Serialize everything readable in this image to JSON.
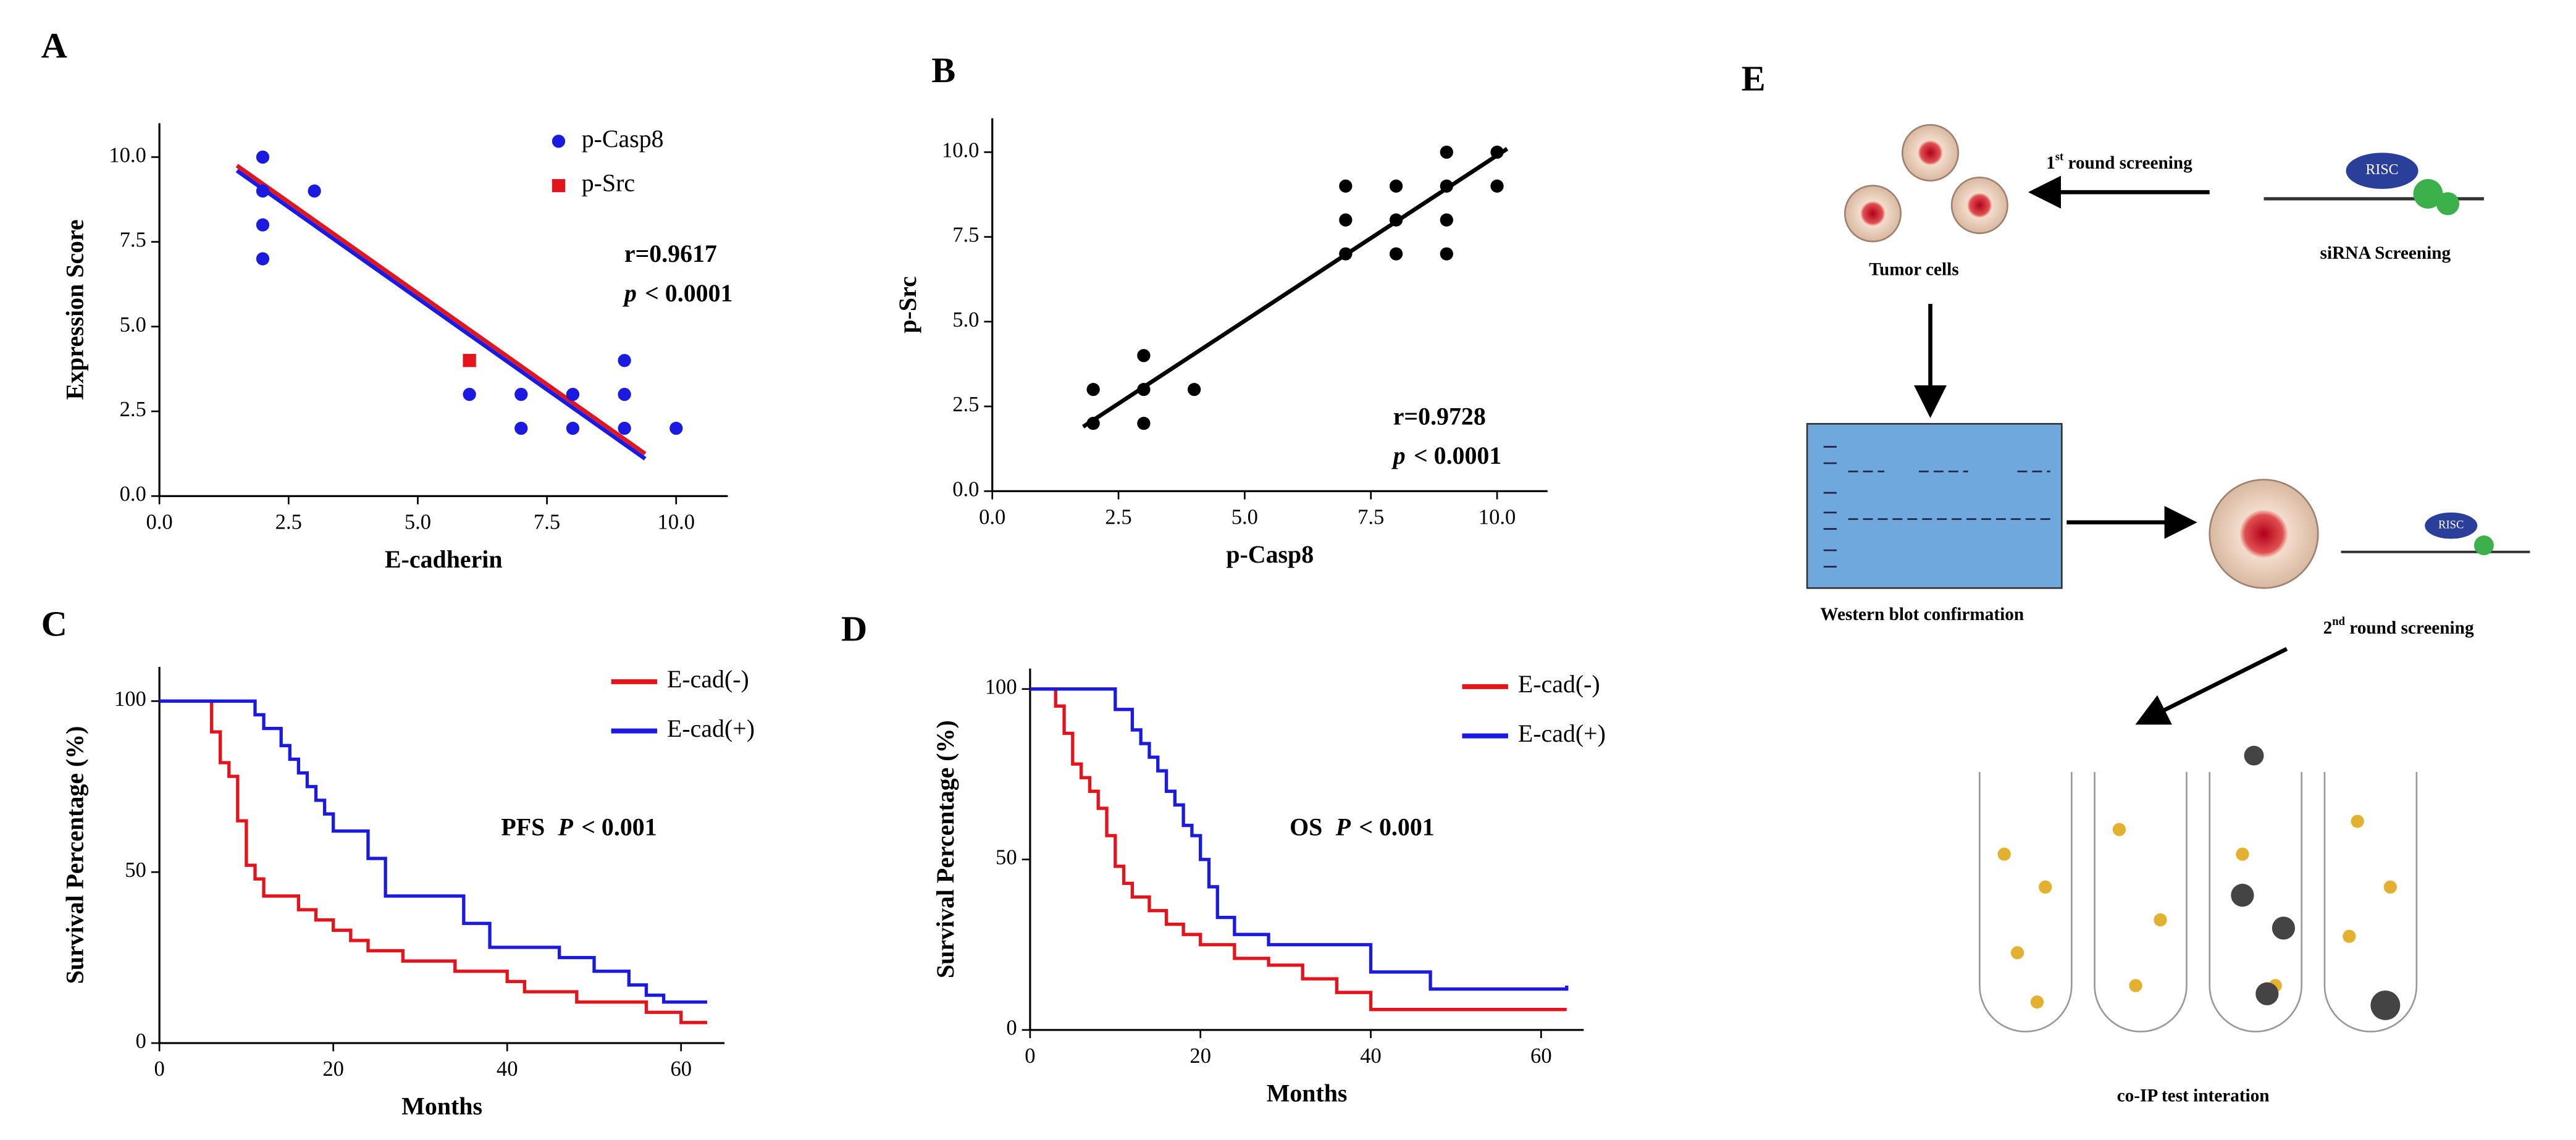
{
  "chart_data": [
    {
      "type": "scatter",
      "label": "A",
      "x_label": "E-cadherin",
      "y_label": "Expression Score",
      "xlim": [
        0,
        11
      ],
      "ylim": [
        0,
        11
      ],
      "xticks": [
        {
          "value": 0,
          "label": "0.0"
        },
        {
          "value": 2.5,
          "label": "2.5"
        },
        {
          "value": 5,
          "label": "5.0"
        },
        {
          "value": 7.5,
          "label": "7.5"
        },
        {
          "value": 10,
          "label": "10.0"
        }
      ],
      "yticks": [
        {
          "value": 0,
          "label": "0.0"
        },
        {
          "value": 2.5,
          "label": "2.5"
        },
        {
          "value": 5,
          "label": "5.0"
        },
        {
          "value": 7.5,
          "label": "7.5"
        },
        {
          "value": 10,
          "label": "10.0"
        }
      ],
      "series": [
        {
          "name": "p-Casp8",
          "color": "#1a1ae0",
          "marker": "circle",
          "x": [
            2,
            2,
            2,
            2,
            3,
            6,
            7,
            7,
            8,
            8,
            9,
            9,
            9,
            10
          ],
          "values": [
            10,
            9,
            8,
            7,
            9,
            3,
            3,
            2,
            3,
            2,
            4,
            3,
            2,
            2
          ]
        },
        {
          "name": "p-Src",
          "color": "#e3141c",
          "marker": "square",
          "x": [
            6
          ],
          "values": [
            4
          ]
        }
      ],
      "fit_lines": [
        {
          "color": "#e3141c",
          "x": [
            1.5,
            9.4
          ],
          "values": [
            9.75,
            1.25
          ]
        },
        {
          "color": "#1a1ae0",
          "x": [
            1.5,
            9.4
          ],
          "values": [
            9.6,
            1.1
          ]
        }
      ],
      "stat_r": "r=0.9617",
      "stat_p_symbol": "p",
      "stat_p_value": "< 0.0001"
    },
    {
      "type": "scatter",
      "label": "B",
      "x_label": "p-Casp8",
      "y_label": "p-Src",
      "xlim": [
        0,
        11
      ],
      "ylim": [
        0,
        11
      ],
      "xticks": [
        {
          "value": 0,
          "label": "0.0"
        },
        {
          "value": 2.5,
          "label": "2.5"
        },
        {
          "value": 5,
          "label": "5.0"
        },
        {
          "value": 7.5,
          "label": "7.5"
        },
        {
          "value": 10,
          "label": "10.0"
        }
      ],
      "yticks": [
        {
          "value": 0,
          "label": "0.0"
        },
        {
          "value": 2.5,
          "label": "2.5"
        },
        {
          "value": 5,
          "label": "5.0"
        },
        {
          "value": 7.5,
          "label": "7.5"
        },
        {
          "value": 10,
          "label": "10.0"
        }
      ],
      "series": [
        {
          "color": "#000000",
          "marker": "circle",
          "x": [
            2,
            2,
            3,
            3,
            3,
            4,
            7,
            7,
            7,
            8,
            8,
            8,
            9,
            9,
            9,
            9,
            10,
            10
          ],
          "values": [
            3,
            2,
            4,
            3,
            2,
            3,
            9,
            8,
            7,
            9,
            8,
            7,
            10,
            9,
            8,
            7,
            10,
            9
          ]
        }
      ],
      "fit_lines": [
        {
          "color": "#000000",
          "x": [
            1.8,
            10.2
          ],
          "values": [
            1.9,
            10.1
          ]
        }
      ],
      "stat_r": "r=0.9728",
      "stat_p_symbol": "p",
      "stat_p_value": "< 0.0001"
    },
    {
      "type": "step",
      "label": "C",
      "x_label": "Months",
      "y_label": "Survival Percentage (%)",
      "xlim": [
        0,
        65
      ],
      "ylim": [
        0,
        110
      ],
      "xticks": [
        0,
        20,
        40,
        60
      ],
      "yticks": [
        0,
        50,
        100
      ],
      "series": [
        {
          "name": "E-cad(-)",
          "color": "#e3141c",
          "x": [
            0,
            5,
            6,
            7,
            8,
            9,
            10,
            11,
            12,
            14,
            16,
            18,
            20,
            22,
            24,
            28,
            34,
            40,
            42,
            48,
            52,
            56,
            60,
            63
          ],
          "values": [
            100,
            100,
            91,
            82,
            78,
            65,
            52,
            48,
            43,
            43,
            39,
            36,
            33,
            30,
            27,
            24,
            21,
            18,
            15,
            12,
            12,
            9,
            6,
            6
          ]
        },
        {
          "name": "E-cad(+)",
          "color": "#1a1ae0",
          "x": [
            0,
            10,
            11,
            12,
            14,
            15,
            16,
            17,
            18,
            19,
            20,
            22,
            24,
            26,
            30,
            35,
            38,
            42,
            46,
            50,
            54,
            56,
            58,
            60,
            63
          ],
          "values": [
            100,
            100,
            96,
            92,
            87,
            83,
            79,
            75,
            71,
            67,
            62,
            62,
            54,
            43,
            43,
            35,
            28,
            28,
            25,
            21,
            17,
            14,
            12,
            12,
            12
          ]
        }
      ],
      "stat_prefix": "PFS",
      "stat_p_symbol": "P",
      "stat_p_value": "< 0.001"
    },
    {
      "type": "step",
      "label": "D",
      "x_label": "Months",
      "y_label": "Survival Percentage (%)",
      "xlim": [
        0,
        65
      ],
      "ylim": [
        0,
        106
      ],
      "xticks": [
        0,
        20,
        40,
        60
      ],
      "yticks": [
        0,
        50,
        100
      ],
      "series": [
        {
          "name": "E-cad(-)",
          "color": "#e3141c",
          "x": [
            0,
            3,
            4,
            5,
            6,
            7,
            8,
            9,
            10,
            11,
            12,
            14,
            16,
            18,
            20,
            24,
            28,
            32,
            36,
            40,
            44,
            63
          ],
          "values": [
            100,
            95,
            87,
            78,
            74,
            70,
            65,
            57,
            48,
            43,
            39,
            35,
            31,
            28,
            25,
            21,
            19,
            15,
            11,
            6,
            6,
            6
          ]
        },
        {
          "name": "E-cad(+)",
          "color": "#1a1ae0",
          "x": [
            0,
            10,
            12,
            13,
            14,
            15,
            16,
            17,
            18,
            19,
            20,
            21,
            22,
            24,
            28,
            33,
            40,
            47,
            50,
            63
          ],
          "values": [
            100,
            94,
            88,
            84,
            80,
            76,
            70,
            66,
            60,
            57,
            50,
            42,
            33,
            28,
            25,
            25,
            17,
            12,
            12,
            13
          ]
        }
      ],
      "stat_prefix": "OS",
      "stat_p_symbol": "P",
      "stat_p_value": "< 0.001"
    }
  ],
  "diagram": {
    "label": "E",
    "tumor_cells": "Tumor cells",
    "round1_num": "1",
    "round1_sup": "st",
    "round1_text": " round screening",
    "risc": "RISC",
    "sirna": "siRNA Screening",
    "western": "Western blot confirmation",
    "round2_num": "2",
    "round2_sup": "nd",
    "round2_text": " round screening",
    "coip": "co-IP test interation"
  }
}
